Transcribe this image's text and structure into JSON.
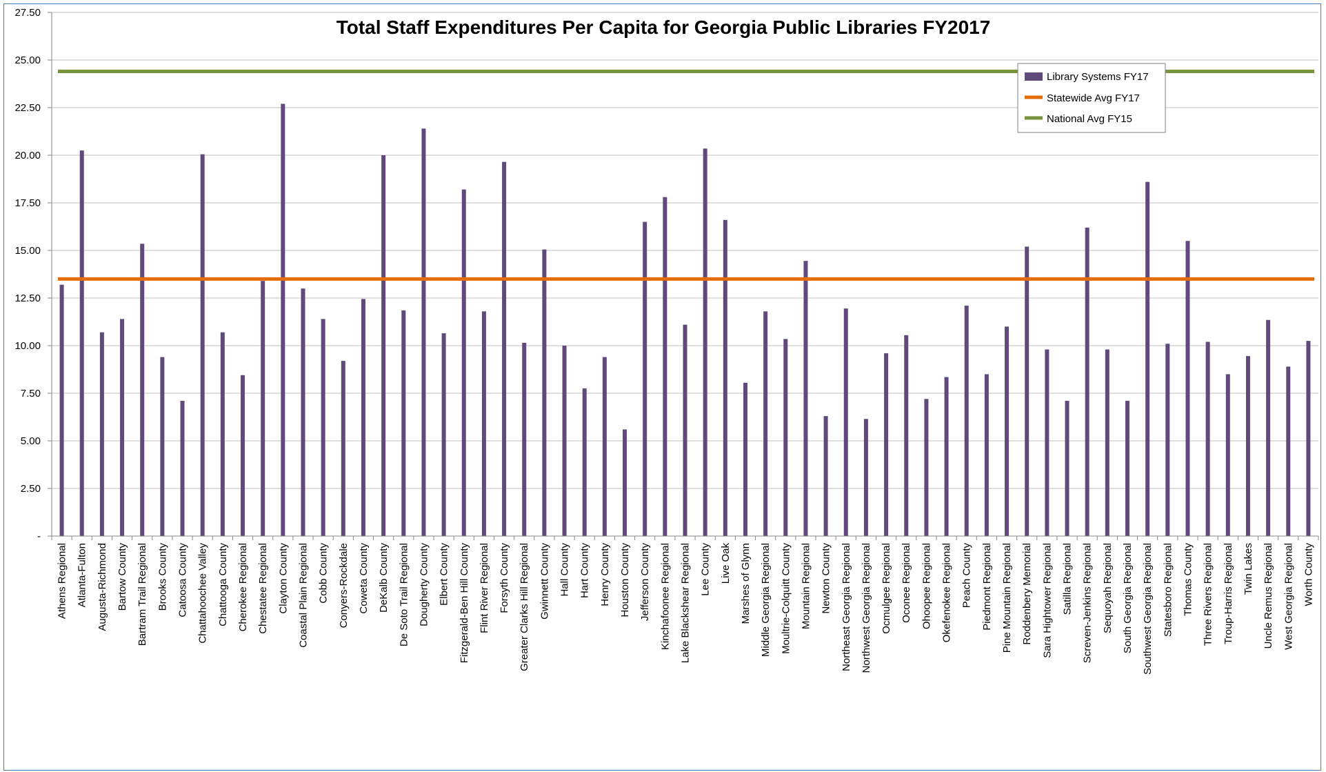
{
  "chart_data": {
    "type": "bar",
    "title": "Total Staff Expenditures Per Capita for Georgia Public Libraries FY2017",
    "xlabel": "",
    "ylabel": "",
    "ylim": [
      0,
      27.5
    ],
    "yticks": [
      0,
      2.5,
      5,
      7.5,
      10,
      12.5,
      15,
      17.5,
      20,
      22.5,
      25,
      27.5
    ],
    "ytick_labels": [
      "-",
      "2.50",
      "5.00",
      "7.50",
      "10.00",
      "12.50",
      "15.00",
      "17.50",
      "20.00",
      "22.50",
      "25.00",
      "27.50"
    ],
    "grid": true,
    "legend_position": "top-right",
    "categories": [
      "Athens Regional",
      "Atlanta-Fulton",
      "Augusta-Richmond",
      "Bartow County",
      "Bartram Trail Regional",
      "Brooks County",
      "Catoosa County",
      "Chattahoochee Valley",
      "Chattooga County",
      "Cherokee Regional",
      "Chestatee Regional",
      "Clayton County",
      "Coastal Plain Regional",
      "Cobb County",
      "Conyers-Rockdale",
      "Coweta County",
      "DeKalb County",
      "De Soto Trail Regional",
      "Dougherty County",
      "Elbert County",
      "Fitzgerald-Ben Hill County",
      "Flint River Regional",
      "Forsyth County",
      "Greater Clarks Hill Regional",
      "Gwinnett County",
      "Hall County",
      "Hart County",
      "Henry County",
      "Houston County",
      "Jefferson County",
      "Kinchafoonee Regional",
      "Lake Blackshear Regional",
      "Lee County",
      "Live Oak",
      "Marshes of Glynn",
      "Middle Georgia Regional",
      "Moultrie-Colquitt County",
      "Mountain Regional",
      "Newton County",
      "Northeast Georgia Regional",
      "Northwest Georgia Regional",
      "Ocmulgee Regional",
      "Oconee Regional",
      "Ohoopee Regional",
      "Okefenokee Regional",
      "Peach County",
      "Piedmont Regional",
      "Pine Mountain Regional",
      "Roddenbery Memorial",
      "Sara Hightower Regional",
      "Satilla Regional",
      "Screven-Jenkins Regional",
      "Sequoyah Regional",
      "South Georgia Regional",
      "Southwest Georgia Regional",
      "Statesboro Regional",
      "Thomas County",
      "Three Rivers Regional",
      "Troup-Harris Regional",
      "Twin Lakes",
      "Uncle Remus Regional",
      "West Georgia Regional",
      "Worth County"
    ],
    "series": [
      {
        "name": "Library Systems FY17",
        "kind": "bar",
        "color": "#604a7b",
        "values": [
          13.2,
          20.25,
          10.7,
          11.4,
          15.35,
          9.4,
          7.1,
          20.05,
          10.7,
          8.45,
          13.4,
          22.7,
          13.0,
          11.4,
          9.2,
          12.45,
          20.0,
          11.85,
          21.4,
          10.65,
          18.2,
          11.8,
          19.65,
          10.15,
          15.05,
          10.0,
          7.75,
          9.4,
          5.6,
          16.5,
          17.8,
          11.1,
          20.35,
          16.6,
          8.05,
          11.8,
          10.35,
          14.45,
          6.3,
          11.95,
          6.15,
          9.6,
          10.55,
          7.2,
          8.35,
          12.1,
          8.5,
          11.0,
          15.2,
          9.8,
          7.1,
          16.2,
          9.8,
          7.1,
          18.6,
          10.1,
          15.5,
          10.2,
          8.5,
          9.45,
          11.35,
          8.9,
          10.25
        ]
      },
      {
        "name": "Statewide Avg FY17",
        "kind": "line",
        "color": "#e46c0a",
        "value": 13.5
      },
      {
        "name": "National Avg FY15",
        "kind": "line",
        "color": "#77933c",
        "value": 24.4
      }
    ]
  }
}
